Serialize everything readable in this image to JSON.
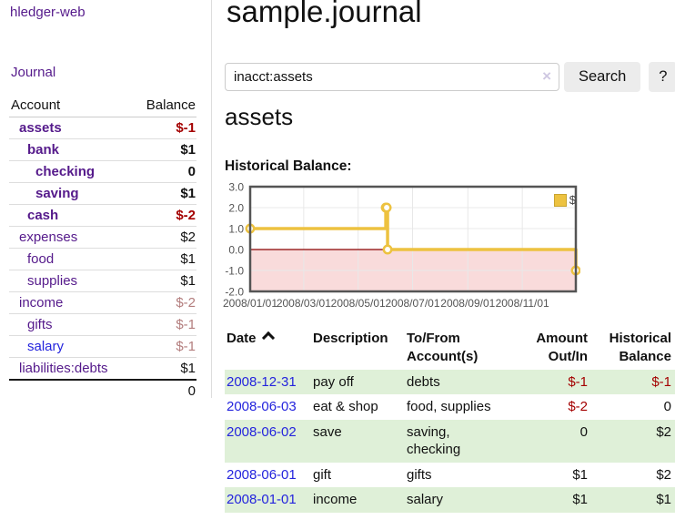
{
  "sidebar": {
    "brand": "hledger-web",
    "journal_link": "Journal",
    "accounts_header": {
      "account": "Account",
      "balance": "Balance"
    },
    "accounts": [
      {
        "name": "assets",
        "indent": 0,
        "bold": true,
        "balance": "$-1"
      },
      {
        "name": "bank",
        "indent": 1,
        "bold": true,
        "balance": "$1"
      },
      {
        "name": "checking",
        "indent": 2,
        "bold": true,
        "balance": "0"
      },
      {
        "name": "saving",
        "indent": 2,
        "bold": true,
        "balance": "$1"
      },
      {
        "name": "cash",
        "indent": 1,
        "bold": true,
        "balance": "$-2"
      },
      {
        "name": "expenses",
        "indent": 0,
        "bold": false,
        "balance": "$2"
      },
      {
        "name": "food",
        "indent": 1,
        "bold": false,
        "balance": "$1"
      },
      {
        "name": "supplies",
        "indent": 1,
        "bold": false,
        "balance": "$1"
      },
      {
        "name": "income",
        "indent": 0,
        "bold": false,
        "balance": "$-2"
      },
      {
        "name": "gifts",
        "indent": 1,
        "bold": false,
        "balance": "$-1"
      },
      {
        "name": "salary",
        "indent": 1,
        "bold": false,
        "balance": "$-1"
      },
      {
        "name": "liabilities:debts",
        "indent": 0,
        "bold": false,
        "balance": "$1"
      }
    ],
    "total": "0"
  },
  "header": {
    "title": "sample.journal"
  },
  "search": {
    "query": "inacct:assets",
    "clear_icon": "×",
    "search_label": "Search",
    "help_label": "?"
  },
  "account_page": {
    "heading": "assets",
    "chart_label": "Historical Balance:"
  },
  "chart_data": {
    "type": "line",
    "title": "Historical Balance:",
    "step": true,
    "grid": true,
    "ylim": [
      -2,
      3
    ],
    "xlim_days": [
      0,
      365
    ],
    "y_ticks": [
      3.0,
      2.0,
      1.0,
      0.0,
      -1.0,
      -2.0
    ],
    "x_ticks": [
      {
        "day": 0,
        "label": "2008/01/01"
      },
      {
        "day": 60,
        "label": "2008/03/01"
      },
      {
        "day": 121,
        "label": "2008/05/01"
      },
      {
        "day": 182,
        "label": "2008/07/01"
      },
      {
        "day": 244,
        "label": "2008/09/01"
      },
      {
        "day": 305,
        "label": "2008/11/01"
      }
    ],
    "series": [
      {
        "name": "$",
        "color": "#edc240",
        "points": [
          [
            "2008-01-01",
            1
          ],
          [
            "2008-06-01",
            2
          ],
          [
            "2008-06-02",
            2
          ],
          [
            "2008-06-03",
            0
          ],
          [
            "2008-12-31",
            -1
          ]
        ],
        "points_days": [
          [
            0,
            1
          ],
          [
            152,
            2
          ],
          [
            153,
            2
          ],
          [
            154,
            0
          ],
          [
            365,
            -1
          ]
        ]
      }
    ],
    "legend": {
      "label": "$",
      "position": "top-right"
    },
    "negative_region_color": "#f9dbdb",
    "zero_line_color": "#8b0000",
    "border_color": "#545454",
    "grid_color": "#e8e8e8"
  },
  "register": {
    "columns": [
      {
        "label": "Date"
      },
      {
        "label": "Description"
      },
      {
        "label": "To/From\nAccount(s)"
      },
      {
        "label": "Amount\nOut/In"
      },
      {
        "label": "Historical\nBalance"
      }
    ],
    "rows": [
      {
        "date": "2008-12-31",
        "description": "pay off",
        "accounts": "debts",
        "amount": "$-1",
        "balance": "$-1"
      },
      {
        "date": "2008-06-03",
        "description": "eat & shop",
        "accounts": "food, supplies",
        "amount": "$-2",
        "balance": "0"
      },
      {
        "date": "2008-06-02",
        "description": "save",
        "accounts": "saving,\nchecking",
        "amount": "0",
        "balance": "$2"
      },
      {
        "date": "2008-06-01",
        "description": "gift",
        "accounts": "gifts",
        "amount": "$1",
        "balance": "$2"
      },
      {
        "date": "2008-01-01",
        "description": "income",
        "accounts": "salary",
        "amount": "$1",
        "balance": "$1"
      }
    ]
  },
  "colors": {
    "link_purple": "#551a8b",
    "link_blue": "#2424dd",
    "negative_strong": "#a40000",
    "negative_soft": "#b37d7d",
    "row_highlight_green": "#dff0d8",
    "chart_yellow": "#edc240"
  }
}
